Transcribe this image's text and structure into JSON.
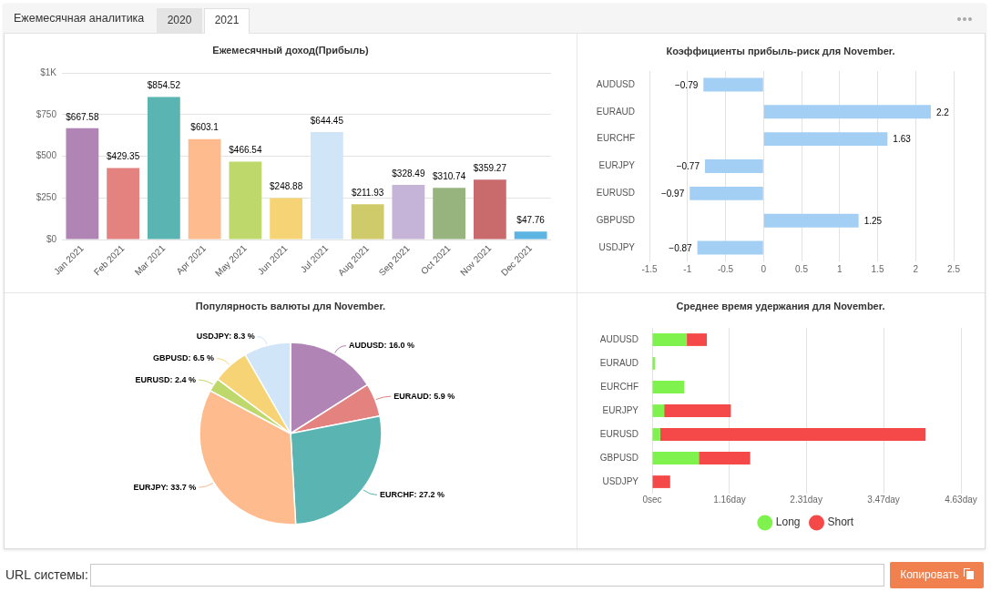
{
  "chart_data": [
    {
      "type": "other",
      "annotations": [
        "Ежемесячная аналитика",
        "2020",
        "2021"
      ]
    },
    {
      "type": "bar",
      "title": "Ежемесячный доход(Прибыль)",
      "categories": [
        "Jan 2021",
        "Feb 2021",
        "Mar 2021",
        "Apr 2021",
        "May 2021",
        "Jun 2021",
        "Jul 2021",
        "Aug 2021",
        "Sep 2021",
        "Oct 2021",
        "Nov 2021",
        "Dec 2021"
      ],
      "values": [
        667.58,
        429.35,
        854.52,
        603.1,
        466.54,
        248.88,
        644.45,
        211.93,
        328.49,
        310.74,
        359.27,
        47.76
      ],
      "colors": [
        "#b085b5",
        "#e3827f",
        "#5ab4b2",
        "#fdbb8e",
        "#bfd86c",
        "#f6d475",
        "#d0e5f8",
        "#cfcb6a",
        "#c5b4d8",
        "#98b47e",
        "#c96b6d",
        "#5cb4e2"
      ],
      "value_labels": [
        "$667.58",
        "$429.35",
        "$854.52",
        "$603.1",
        "$466.54",
        "$248.88",
        "$644.45",
        "$211.93",
        "$328.49",
        "$310.74",
        "$359.27",
        "$47.76"
      ],
      "ylim": [
        0,
        1000
      ],
      "yticks": [
        {
          "value": 0,
          "label": "$0"
        },
        {
          "value": 250,
          "label": "$250"
        },
        {
          "value": 500,
          "label": "$500"
        },
        {
          "value": 750,
          "label": "$750"
        },
        {
          "value": 1000,
          "label": "$1K"
        }
      ],
      "grid": "y"
    },
    {
      "type": "bar",
      "orientation": "horizontal",
      "title": "Коэффициенты прибыль-риск для November.",
      "categories": [
        "AUDUSD",
        "EURAUD",
        "EURCHF",
        "EURJPY",
        "EURUSD",
        "GBPUSD",
        "USDJPY"
      ],
      "values": [
        -0.79,
        2.2,
        1.63,
        -0.77,
        -0.97,
        1.25,
        -0.87
      ],
      "color": "#a3cff5",
      "value_labels": [
        "−0.79",
        "2.2",
        "1.63",
        "−0.77",
        "−0.97",
        "1.25",
        "−0.87"
      ],
      "xlim": [
        -1.5,
        2.5
      ],
      "xticks": [
        -1.5,
        -1,
        -0.5,
        0,
        0.5,
        1,
        1.5,
        2,
        2.5
      ],
      "grid": "x"
    },
    {
      "type": "pie",
      "title": "Популярность валюты для November.",
      "categories": [
        "AUDUSD",
        "EURAUD",
        "EURCHF",
        "EURJPY",
        "EURUSD",
        "GBPUSD",
        "USDJPY"
      ],
      "values": [
        16.0,
        5.9,
        27.2,
        33.7,
        2.4,
        6.5,
        8.3
      ],
      "colors": [
        "#b085b5",
        "#e3827f",
        "#5ab4b2",
        "#fdbb8e",
        "#bfd86c",
        "#f6d475",
        "#d0e5f8"
      ],
      "value_labels": [
        "16.0 %",
        "5.9 %",
        "27.2 %",
        "33.7 %",
        "2.4 %",
        "6.5 %",
        "8.3 %"
      ]
    },
    {
      "type": "bar",
      "orientation": "horizontal",
      "stacked": true,
      "title": "Среднее время удержания для November.",
      "categories": [
        "AUDUSD",
        "EURAUD",
        "EURCHF",
        "EURJPY",
        "EURUSD",
        "GBPUSD",
        "USDJPY"
      ],
      "series": [
        {
          "name": "Long",
          "color": "#7ff24d",
          "values": [
            0.52,
            0.04,
            0.48,
            0.18,
            0.12,
            0.7,
            null
          ]
        },
        {
          "name": "Short",
          "color": "#f54848",
          "values": [
            0.3,
            null,
            null,
            1.0,
            3.98,
            0.77,
            0.27
          ]
        }
      ],
      "xlim": [
        0,
        4.63
      ],
      "xticks": [
        {
          "value": 0,
          "label": "0sec"
        },
        {
          "value": 1.16,
          "label": "1.16day"
        },
        {
          "value": 2.31,
          "label": "2.31day"
        },
        {
          "value": 3.47,
          "label": "3.47day"
        },
        {
          "value": 4.63,
          "label": "4.63day"
        }
      ],
      "grid": "x",
      "legend": "bottom"
    },
    {
      "type": "other",
      "annotations": [
        "URL системы:",
        "Копировать"
      ]
    }
  ]
}
